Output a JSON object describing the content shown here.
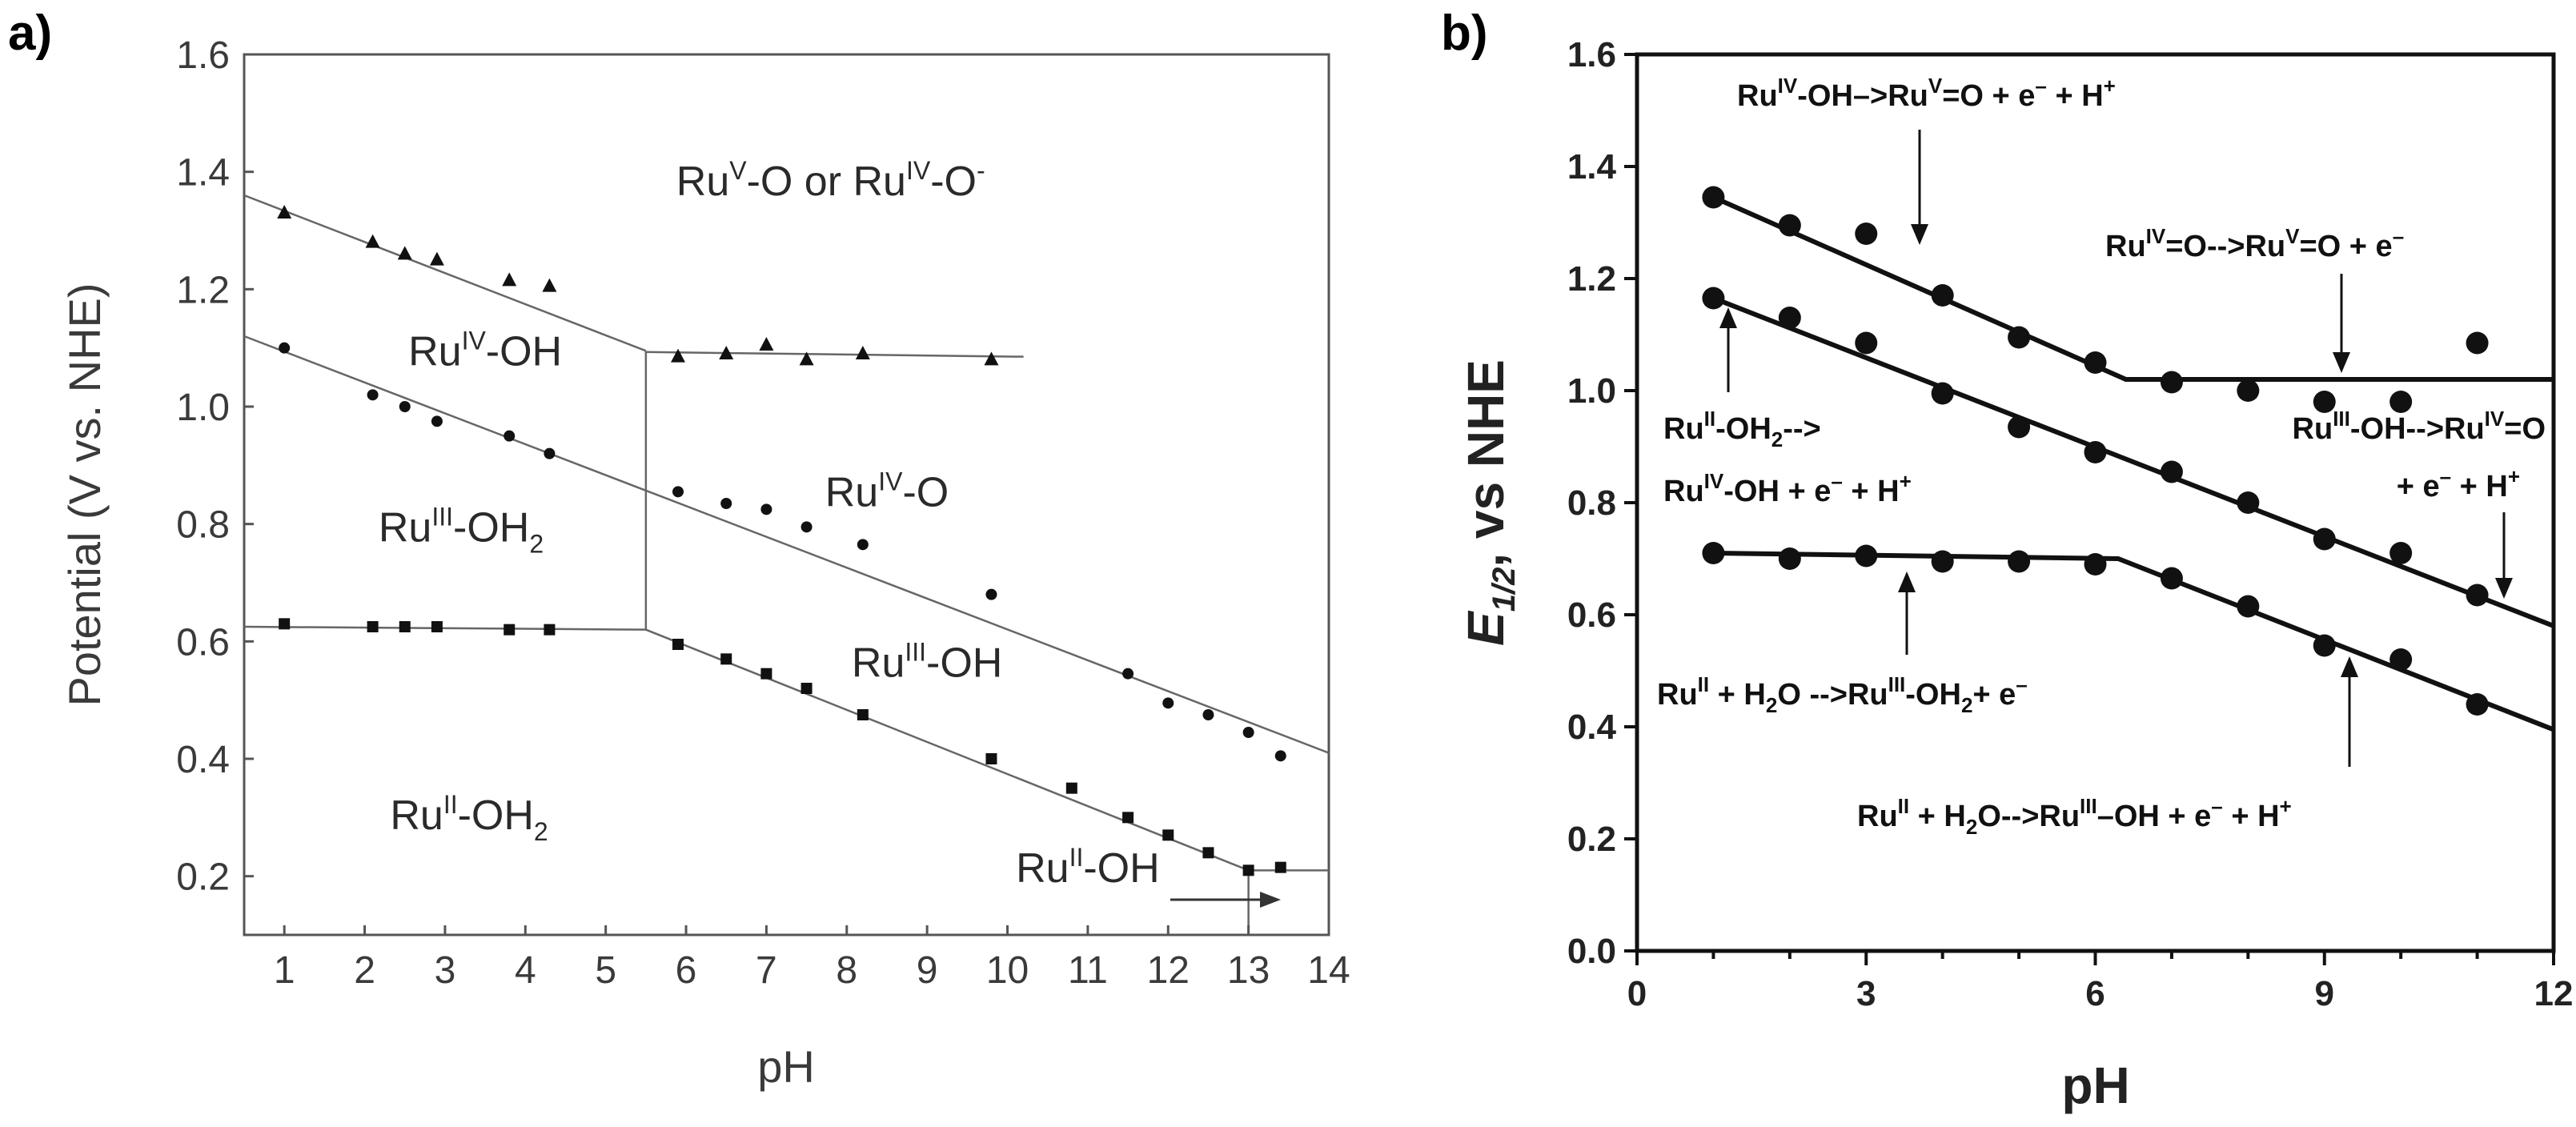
{
  "chart_data": [
    {
      "panel": "a)",
      "type": "scatter",
      "title": "",
      "xlabel": "pH",
      "ylabel": "Potential (V vs. NHE)",
      "xlim": [
        0.5,
        14
      ],
      "ylim": [
        0.1,
        1.6
      ],
      "xticks": [
        "1",
        "2",
        "3",
        "4",
        "5",
        "6",
        "7",
        "8",
        "9",
        "10",
        "11",
        "12",
        "13",
        "14"
      ],
      "yticks": [
        "0.2",
        "0.4",
        "0.6",
        "0.8",
        "1.0",
        "1.2",
        "1.4",
        "1.6"
      ],
      "series": [
        {
          "name": "triangles",
          "marker": "triangle",
          "points": [
            [
              1,
              1.33
            ],
            [
              2.1,
              1.28
            ],
            [
              2.5,
              1.26
            ],
            [
              2.9,
              1.25
            ],
            [
              3.8,
              1.215
            ],
            [
              4.3,
              1.205
            ],
            [
              5.9,
              1.085
            ],
            [
              6.5,
              1.09
            ],
            [
              7.0,
              1.105
            ],
            [
              7.5,
              1.08
            ],
            [
              8.2,
              1.09
            ],
            [
              9.8,
              1.08
            ]
          ]
        },
        {
          "name": "circles",
          "marker": "circle",
          "points": [
            [
              1,
              1.1
            ],
            [
              2.1,
              1.02
            ],
            [
              2.5,
              1.0
            ],
            [
              2.9,
              0.975
            ],
            [
              3.8,
              0.95
            ],
            [
              4.3,
              0.92
            ],
            [
              5.9,
              0.855
            ],
            [
              6.5,
              0.835
            ],
            [
              7.0,
              0.825
            ],
            [
              7.5,
              0.795
            ],
            [
              8.2,
              0.765
            ],
            [
              9.8,
              0.68
            ],
            [
              11.5,
              0.545
            ],
            [
              12.0,
              0.495
            ],
            [
              12.5,
              0.475
            ],
            [
              13.0,
              0.445
            ],
            [
              13.4,
              0.405
            ]
          ]
        },
        {
          "name": "squares",
          "marker": "square",
          "points": [
            [
              1,
              0.63
            ],
            [
              2.1,
              0.625
            ],
            [
              2.5,
              0.625
            ],
            [
              2.9,
              0.625
            ],
            [
              3.8,
              0.62
            ],
            [
              4.3,
              0.62
            ],
            [
              5.9,
              0.595
            ],
            [
              6.5,
              0.57
            ],
            [
              7.0,
              0.545
            ],
            [
              7.5,
              0.52
            ],
            [
              8.2,
              0.475
            ],
            [
              9.8,
              0.4
            ],
            [
              10.8,
              0.35
            ],
            [
              11.5,
              0.3
            ],
            [
              12.0,
              0.27
            ],
            [
              12.5,
              0.24
            ],
            [
              13.0,
              0.21
            ],
            [
              13.4,
              0.215
            ]
          ]
        }
      ],
      "lines": [
        {
          "points": [
            [
              0.5,
              1.36
            ],
            [
              5.5,
              1.095
            ]
          ]
        },
        {
          "points": [
            [
              5.5,
              1.093
            ],
            [
              10.2,
              1.085
            ]
          ]
        },
        {
          "points": [
            [
              0.5,
              1.12
            ],
            [
              14,
              0.41
            ]
          ]
        },
        {
          "points": [
            [
              0.5,
              0.625
            ],
            [
              5.5,
              0.62
            ],
            [
              13.0,
              0.21
            ]
          ]
        },
        {
          "points": [
            [
              13.0,
              0.21
            ],
            [
              14,
              0.21
            ]
          ]
        },
        {
          "points": [
            [
              5.5,
              1.095
            ],
            [
              5.5,
              0.62
            ]
          ]
        },
        {
          "points": [
            [
              13.0,
              0.21
            ],
            [
              13.0,
              0.1
            ]
          ]
        }
      ],
      "regions": [
        {
          "text": "RuV-O or RuIV-O-",
          "x": 7.8,
          "y": 1.36
        },
        {
          "text": "RuIV-OH",
          "x": 3.5,
          "y": 1.07
        },
        {
          "text": "RuIV-O",
          "x": 8.5,
          "y": 0.83
        },
        {
          "text": "RuIII-OH2",
          "x": 3.2,
          "y": 0.77
        },
        {
          "text": "RuIII-OH",
          "x": 9.0,
          "y": 0.54
        },
        {
          "text": "RuII-OH2",
          "x": 3.3,
          "y": 0.28
        },
        {
          "text": "RuII-OH",
          "x": 11.0,
          "y": 0.19
        }
      ]
    },
    {
      "panel": "b)",
      "type": "scatter",
      "title": "",
      "xlabel": "pH",
      "ylabel": "E1/2, vs NHE",
      "xlim": [
        0,
        12
      ],
      "ylim": [
        0,
        1.6
      ],
      "xticks": [
        "0",
        "3",
        "6",
        "9",
        "12"
      ],
      "yticks": [
        "0.0",
        "0.2",
        "0.4",
        "0.6",
        "0.8",
        "1.0",
        "1.2",
        "1.4",
        "1.6"
      ],
      "series": [
        {
          "name": "upper",
          "marker": "circle",
          "points": [
            [
              1,
              1.345
            ],
            [
              2,
              1.295
            ],
            [
              3,
              1.28
            ],
            [
              4,
              1.17
            ],
            [
              5,
              1.095
            ],
            [
              6,
              1.05
            ],
            [
              7,
              1.015
            ],
            [
              8,
              1.0
            ],
            [
              9,
              0.98
            ],
            [
              10,
              0.98
            ],
            [
              11,
              1.085
            ]
          ]
        },
        {
          "name": "middle",
          "marker": "circle",
          "points": [
            [
              1,
              1.165
            ],
            [
              2,
              1.13
            ],
            [
              3,
              1.085
            ],
            [
              4,
              0.995
            ],
            [
              5,
              0.935
            ],
            [
              6,
              0.89
            ],
            [
              7,
              0.855
            ],
            [
              8,
              0.8
            ],
            [
              9,
              0.735
            ],
            [
              10,
              0.71
            ],
            [
              11,
              0.635
            ]
          ]
        },
        {
          "name": "lower",
          "marker": "circle",
          "points": [
            [
              1,
              0.71
            ],
            [
              2,
              0.7
            ],
            [
              3,
              0.705
            ],
            [
              4,
              0.695
            ],
            [
              5,
              0.695
            ],
            [
              6,
              0.69
            ],
            [
              7,
              0.665
            ],
            [
              8,
              0.615
            ],
            [
              9,
              0.545
            ],
            [
              10,
              0.52
            ],
            [
              11,
              0.44
            ]
          ]
        }
      ],
      "lines": [
        {
          "points": [
            [
              1,
              1.345
            ],
            [
              6.4,
              1.02
            ],
            [
              12,
              1.02
            ]
          ]
        },
        {
          "points": [
            [
              1,
              1.165
            ],
            [
              12,
              0.58
            ]
          ]
        },
        {
          "points": [
            [
              1,
              0.71
            ],
            [
              6.3,
              0.7
            ],
            [
              12,
              0.395
            ]
          ]
        }
      ],
      "annotations": {
        "a1": "RuIV-OH–>RuV=O + e– + H+",
        "a2": "RuIV=O-->RuV=O + e–",
        "a3l1": "RuII-OH2-->",
        "a3l2": "RuIV-OH + e– + H+",
        "a4l1": "RuIII-OH-->RuIV=O",
        "a4l2": "+ e– + H+",
        "a5": "RuII + H2O -->RuIII-OH2+ e–",
        "a6": "RuII + H2O-->RuIII–OH + e– + H+"
      }
    }
  ]
}
